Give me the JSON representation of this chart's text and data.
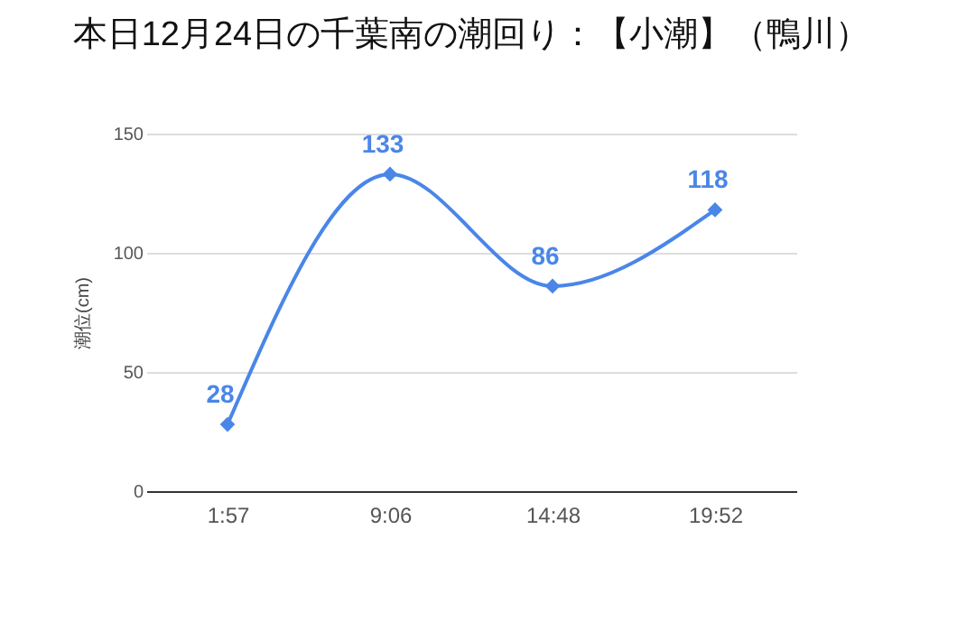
{
  "chart_data": {
    "type": "line",
    "title": "本日12月24日の千葉南の潮回り：【小潮】（鴨川）",
    "ylabel": "潮位(cm)",
    "categories": [
      "1:57",
      "9:06",
      "14:48",
      "19:52"
    ],
    "series": [
      {
        "color": "#4a86e8",
        "values": [
          28,
          133,
          86,
          118
        ]
      }
    ],
    "ylim": [
      0,
      150
    ],
    "yticks": [
      0,
      50,
      100,
      150
    ],
    "grid": "y",
    "marker": "diamond",
    "data_labels": true,
    "legend": false
  }
}
